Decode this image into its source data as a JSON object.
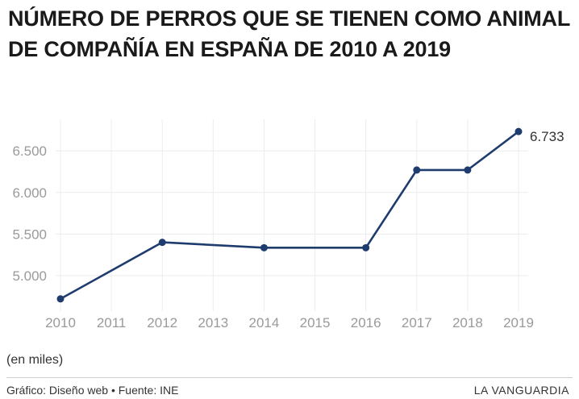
{
  "chart_data": {
    "type": "line",
    "title": "NÚMERO DE PERROS QUE SE TIENEN COMO ANIMAL DE COMPAÑÍA EN ESPAÑA DE 2010 A 2019",
    "x_ticks": [
      "2010",
      "2011",
      "2012",
      "2013",
      "2014",
      "2015",
      "2016",
      "2017",
      "2018",
      "2019"
    ],
    "y_ticks": [
      "5.000",
      "5.500",
      "6.000",
      "6.500"
    ],
    "y_tick_values": [
      5000,
      5500,
      6000,
      6500
    ],
    "xlim": [
      2010,
      2019
    ],
    "ylim": [
      4650,
      6880
    ],
    "grid": true,
    "series": [
      {
        "x": [
          2010,
          2012,
          2014,
          2016,
          2017,
          2018,
          2019
        ],
        "y": [
          4720,
          5400,
          5335,
          5335,
          6270,
          6270,
          6733
        ],
        "color": "#1f3c6e"
      }
    ],
    "end_label": "6.733",
    "unit_note": "(en miles)"
  },
  "footer": {
    "credit": "Gráfico: Diseño web • Fuente: INE",
    "brand": "LA VANGUARDIA"
  }
}
